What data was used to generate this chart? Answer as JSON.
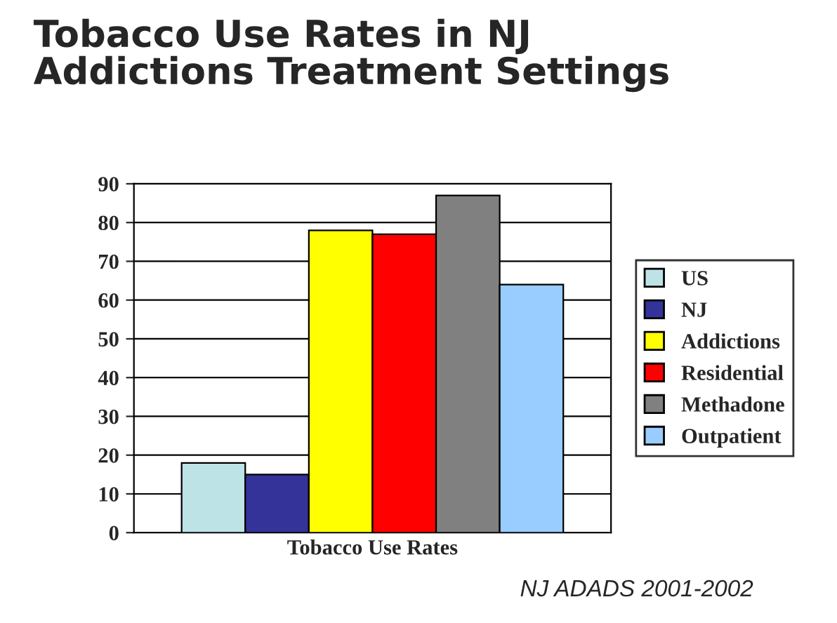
{
  "chart_data": {
    "type": "bar",
    "title": "Tobacco Use Rates in NJ\nAddictions Treatment Settings",
    "categories": [
      "Tobacco Use Rates"
    ],
    "series": [
      {
        "name": "US",
        "color": "#bde3e6",
        "values": [
          18
        ]
      },
      {
        "name": "NJ",
        "color": "#333399",
        "values": [
          15
        ]
      },
      {
        "name": "Addictions",
        "color": "#ffff00",
        "values": [
          78
        ]
      },
      {
        "name": "Residential",
        "color": "#ff0000",
        "values": [
          77
        ]
      },
      {
        "name": "Methadone",
        "color": "#808080",
        "values": [
          87
        ]
      },
      {
        "name": "Outpatient",
        "color": "#99ccff",
        "values": [
          64
        ]
      }
    ],
    "ylim": [
      0,
      90
    ],
    "yticks": [
      0,
      10,
      20,
      30,
      40,
      50,
      60,
      70,
      80,
      90
    ],
    "grid": "y",
    "legend": "right",
    "annotations": [
      "NJ ADADS 2001-2002"
    ]
  }
}
